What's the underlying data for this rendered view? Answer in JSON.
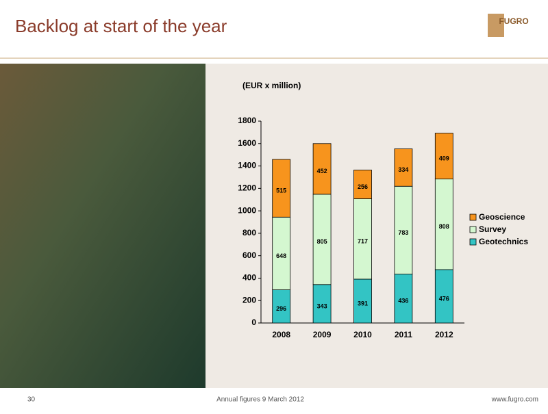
{
  "slide": {
    "title": "Backlog at start of the year",
    "logo": "FUGRO",
    "page_number": "30",
    "footer": "Annual figures 9 March 2012",
    "url": "www.fugro.com"
  },
  "chart_data": {
    "type": "bar",
    "stacked": true,
    "y_label": "(EUR x million)",
    "categories": [
      "2008",
      "2009",
      "2010",
      "2011",
      "2012"
    ],
    "series": [
      {
        "name": "Geotechnics",
        "color": "#33c4c4",
        "values": [
          296,
          343,
          391,
          436,
          476
        ]
      },
      {
        "name": "Survey",
        "color": "#d4f7d0",
        "values": [
          648,
          805,
          717,
          783,
          808
        ]
      },
      {
        "name": "Geoscience",
        "color": "#f7941d",
        "values": [
          515,
          452,
          256,
          334,
          409
        ]
      }
    ],
    "ylim": [
      0,
      1800
    ],
    "yticks": [
      0,
      200,
      400,
      600,
      800,
      1000,
      1200,
      1400,
      1600,
      1800
    ],
    "legend": "right"
  }
}
